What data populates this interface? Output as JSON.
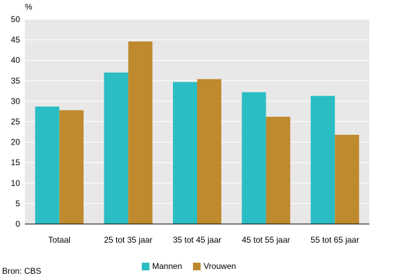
{
  "chart_data": {
    "type": "bar",
    "unit_label": "%",
    "categories": [
      "Totaal",
      "25 tot 35 jaar",
      "35 tot 45 jaar",
      "45 tot 55 jaar",
      "55 tot 65 jaar"
    ],
    "series": [
      {
        "name": "Mannen",
        "color": "#2bbdc4",
        "values": [
          28.7,
          37.0,
          34.7,
          32.2,
          31.3
        ]
      },
      {
        "name": "Vrouwen",
        "color": "#bf8a2e",
        "values": [
          27.8,
          44.6,
          35.4,
          26.2,
          21.8
        ]
      }
    ],
    "ylim": [
      0,
      50
    ],
    "yticks": [
      0,
      5,
      10,
      15,
      20,
      25,
      30,
      35,
      40,
      45,
      50
    ],
    "grid": true,
    "legend_position": "bottom",
    "plot_background": "#e8e8e8",
    "grid_color": "#ffffff"
  },
  "source": "Bron: CBS"
}
